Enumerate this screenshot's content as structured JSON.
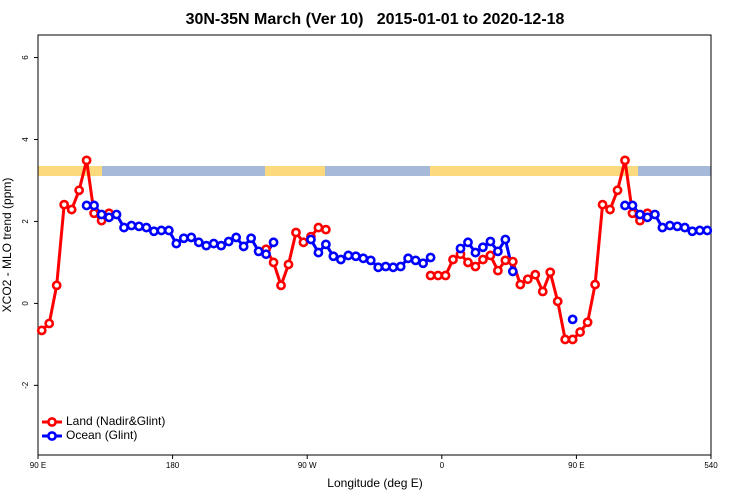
{
  "chart_data": {
    "type": "line",
    "title": "30N-35N March (Ver 10)   2015-01-01 to 2020-12-18",
    "x_label": "Longitude (deg E)",
    "y_label": "XCO2 - MLO trend (ppm)",
    "x": [
      92.5,
      97.5,
      102.5,
      107.5,
      112.5,
      117.5,
      122.5,
      127.5,
      132.5,
      137.5,
      142.5,
      147.5,
      152.5,
      157.5,
      162.5,
      167.5,
      172.5,
      177.5,
      182.5,
      187.5,
      192.5,
      197.5,
      202.5,
      207.5,
      212.5,
      217.5,
      222.5,
      227.5,
      232.5,
      237.5,
      242.5,
      247.5,
      252.5,
      257.5,
      262.5,
      267.5,
      272.5,
      277.5,
      282.5,
      287.5,
      292.5,
      297.5,
      302.5,
      307.5,
      312.5,
      317.5,
      322.5,
      327.5,
      332.5,
      337.5,
      342.5,
      347.5,
      352.5,
      357.5,
      362.5,
      367.5,
      372.5,
      377.5,
      382.5,
      387.5,
      392.5,
      397.5,
      402.5,
      407.5,
      412.5,
      417.5,
      422.5,
      427.5,
      432.5,
      437.5,
      442.5,
      447.5,
      452.5,
      457.5,
      462.5,
      467.5,
      472.5,
      477.5,
      482.5,
      487.5,
      492.5,
      497.5,
      502.5,
      507.5,
      512.5,
      517.5,
      522.5,
      527.5,
      532.5,
      537.5
    ],
    "series": [
      {
        "name": "Land (Nadir&Glint)",
        "color": "#ff0000",
        "values": [
          -0.66,
          -0.49,
          0.44,
          2.41,
          2.29,
          2.76,
          3.49,
          2.2,
          2.02,
          2.2,
          null,
          null,
          null,
          null,
          null,
          null,
          null,
          null,
          null,
          null,
          null,
          null,
          null,
          null,
          null,
          null,
          null,
          null,
          null,
          null,
          1.32,
          1.0,
          0.44,
          0.95,
          1.73,
          1.49,
          1.63,
          1.85,
          1.8,
          null,
          null,
          null,
          null,
          null,
          null,
          null,
          null,
          null,
          null,
          null,
          null,
          null,
          0.68,
          0.68,
          0.68,
          1.07,
          1.2,
          1.0,
          0.9,
          1.07,
          1.17,
          0.8,
          1.05,
          1.02,
          0.46,
          0.59,
          0.7,
          0.29,
          0.76,
          0.05,
          -0.88,
          -0.88,
          -0.7,
          -0.46,
          0.46,
          2.41,
          2.29,
          2.76,
          3.49,
          2.2,
          2.02,
          2.2,
          null,
          null,
          null,
          null,
          null,
          null,
          null,
          null
        ]
      },
      {
        "name": "Ocean (Glint)",
        "color": "#0000ff",
        "values": [
          null,
          null,
          null,
          null,
          null,
          null,
          2.39,
          2.39,
          2.17,
          2.1,
          2.17,
          1.85,
          1.9,
          1.88,
          1.85,
          1.76,
          1.78,
          1.78,
          1.46,
          1.59,
          1.61,
          1.49,
          1.41,
          1.46,
          1.41,
          1.51,
          1.61,
          1.39,
          1.59,
          1.27,
          1.2,
          1.49,
          null,
          null,
          null,
          null,
          1.56,
          1.24,
          1.44,
          1.15,
          1.07,
          1.17,
          1.15,
          1.1,
          1.05,
          0.88,
          0.9,
          0.88,
          0.9,
          1.1,
          1.05,
          0.98,
          1.12,
          null,
          null,
          null,
          1.34,
          1.49,
          1.24,
          1.37,
          1.51,
          1.27,
          1.56,
          0.78,
          null,
          null,
          null,
          null,
          null,
          null,
          null,
          -0.39,
          null,
          null,
          null,
          null,
          null,
          null,
          2.39,
          2.39,
          2.17,
          2.1,
          2.17,
          1.85,
          1.9,
          1.88,
          1.85,
          1.76,
          1.78,
          1.78
        ]
      }
    ],
    "xlim": [
      90,
      540
    ],
    "xticks": [
      {
        "value": 90,
        "label": "90 E"
      },
      180,
      {
        "value": 270,
        "label": "90 W"
      },
      {
        "value": 360,
        "label": "0"
      },
      {
        "value": 450,
        "label": "90 E"
      },
      540
    ],
    "ylim": [
      -3.7,
      6.55
    ],
    "yticks": [
      -2,
      0,
      2,
      4,
      6
    ],
    "legend": "bottom left"
  }
}
